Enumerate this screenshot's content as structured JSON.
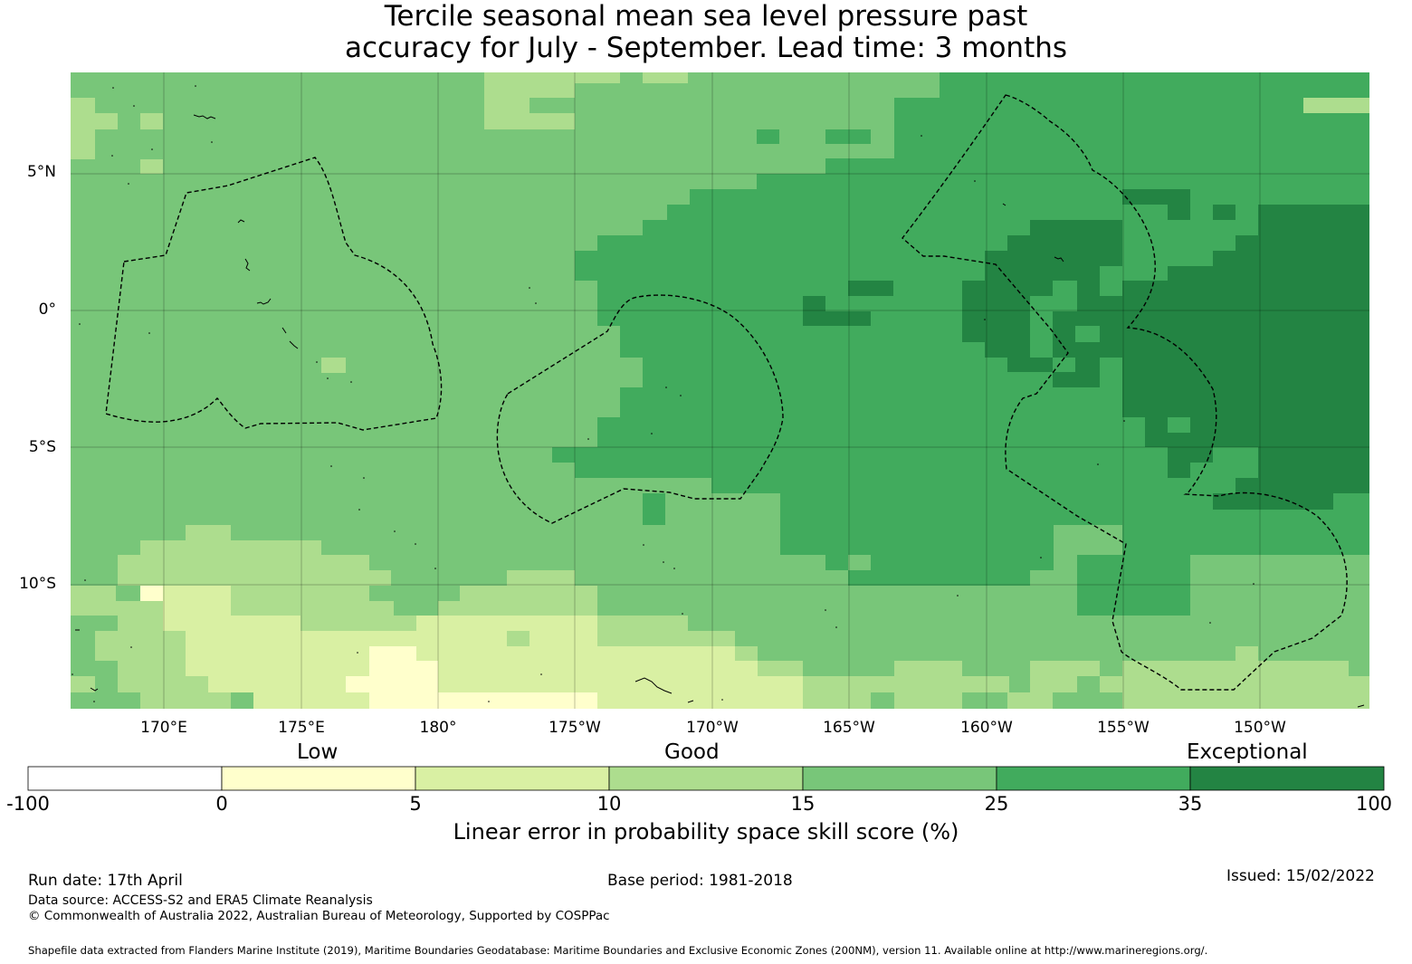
{
  "title": {
    "line1": "Tercile seasonal mean sea level pressure past",
    "line2": "accuracy for July - September. Lead time: 3 months"
  },
  "map": {
    "lat_labels": [
      "5°N",
      "0°",
      "5°S",
      "10°S"
    ],
    "lon_labels": [
      "170°E",
      "175°E",
      "180°",
      "175°W",
      "170°W",
      "165°W",
      "160°W",
      "155°W",
      "150°W"
    ],
    "colors": {
      "c0_5": "#ffffcc",
      "c5_10": "#d9f0a3",
      "c10_15": "#addd8e",
      "c15_25": "#78c679",
      "c25_35": "#41ab5d",
      "c35_100": "#238443"
    }
  },
  "colorbar": {
    "categories": [
      "Low",
      "Good",
      "Exceptional"
    ],
    "ticks": [
      "-100",
      "0",
      "5",
      "10",
      "15",
      "25",
      "35",
      "100"
    ],
    "colors": [
      "#ffffff",
      "#ffffcc",
      "#d9f0a3",
      "#addd8e",
      "#78c679",
      "#41ab5d",
      "#238443"
    ],
    "title": "Linear error in probability space skill score (%)"
  },
  "footer": {
    "run_date": "Run date: 17th April",
    "base_period": "Base period: 1981-2018",
    "issued": "Issued: 15/02/2022",
    "data_source": "Data source: ACCESS-S2 and ERA5 Climate Reanalysis",
    "copyright": "© Commonwealth of Australia 2022, Australian Bureau of Meteorology, Supported by COSPPac",
    "shapefile": "Shapefile data extracted from Flanders Marine Institute (2019), Maritime Boundaries Geodatabase: Maritime Boundaries and Exclusive Economic Zones (200NM), version 11. Available online at http://www.marineregions.org/."
  }
}
